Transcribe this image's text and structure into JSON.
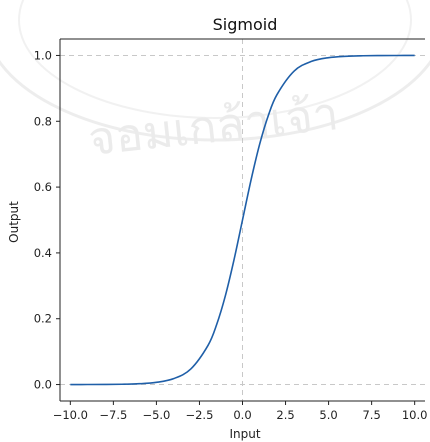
{
  "chart_data": {
    "type": "line",
    "title": "Sigmoid",
    "xlabel": "Input",
    "ylabel": "Output",
    "xlim": [
      -10.6,
      10.6
    ],
    "ylim": [
      -0.05,
      1.05
    ],
    "xticks": [
      -10.0,
      -7.5,
      -5.0,
      -2.5,
      0.0,
      2.5,
      5.0,
      7.5,
      10.0
    ],
    "xtick_labels": [
      "−10.0",
      "−7.5",
      "−5.0",
      "−2.5",
      "0.0",
      "2.5",
      "5.0",
      "7.5",
      "10.0"
    ],
    "yticks": [
      0.0,
      0.2,
      0.4,
      0.6,
      0.8,
      1.0
    ],
    "ytick_labels": [
      "0.0",
      "0.2",
      "0.4",
      "0.6",
      "0.8",
      "1.0"
    ],
    "grid": false,
    "reference_lines": [
      {
        "orientation": "vertical",
        "value": 0,
        "style": "dashed"
      },
      {
        "orientation": "horizontal",
        "value": 0,
        "style": "dashed"
      },
      {
        "orientation": "horizontal",
        "value": 1,
        "style": "dashed"
      }
    ],
    "series": [
      {
        "x": [
          -10,
          -9,
          -8,
          -7,
          -6,
          -5,
          -4,
          -3,
          -2,
          -1.5,
          -1,
          -0.5,
          0,
          0.5,
          1,
          1.5,
          2,
          3,
          4,
          5,
          6,
          7,
          8,
          9,
          10
        ],
        "values": [
          5e-05,
          0.00012,
          0.00034,
          0.00091,
          0.00247,
          0.00669,
          0.01799,
          0.04743,
          0.1192,
          0.1824,
          0.2689,
          0.3775,
          0.5,
          0.6225,
          0.7311,
          0.8176,
          0.8808,
          0.9526,
          0.982,
          0.9933,
          0.9975,
          0.9991,
          0.9997,
          0.9999,
          1.0
        ],
        "color": "#1f5fa8"
      }
    ]
  },
  "watermark": {
    "text": "จอมเกล้าเจ้า",
    "description": "university seal watermark"
  }
}
